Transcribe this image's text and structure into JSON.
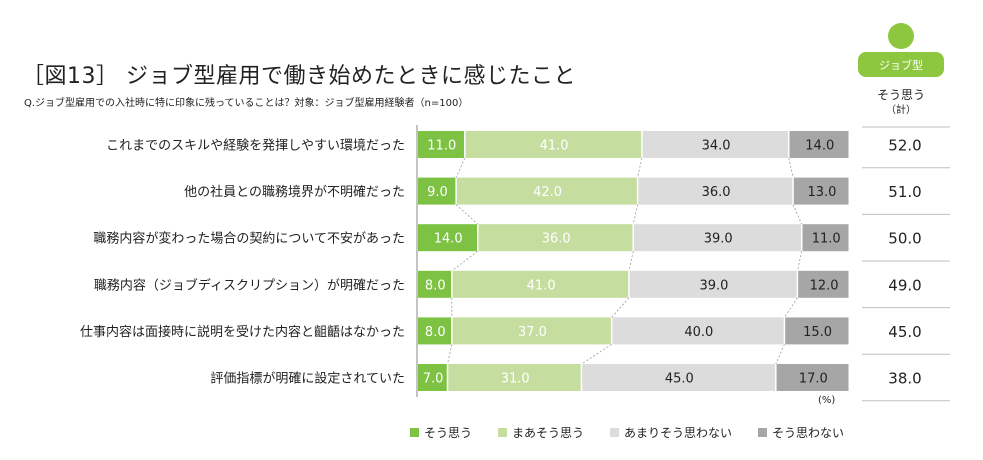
{
  "title": "［図13］ ジョブ型雇用で働き始めたときに感じたこと",
  "subtitle": "Q.ジョブ型雇用での入社時に特に印象に残っていることは？対象：ジョブ型雇用経験者（n=100）",
  "avatar": {
    "label": "ジョブ型",
    "color": "#8dc63f"
  },
  "summary": {
    "header1": "そう思う",
    "header2": "（計）"
  },
  "unit": "(%)",
  "colors": {
    "s1": "#7dc242",
    "s2": "#c5dea0",
    "s3": "#dcdcdc",
    "s4": "#a6a6a6"
  },
  "chart_data": {
    "type": "bar",
    "orientation": "horizontal",
    "stacked": "100%",
    "categories": [
      "これまでのスキルや経験を発揮しやすい環境だった",
      "他の社員との職務境界が不明確だった",
      "職務内容が変わった場合の契約について不安があった",
      "職務内容（ジョブディスクリプション）が明確だった",
      "仕事内容は面接時に説明を受けた内容と齟齬はなかった",
      "評価指標が明確に設定されていた"
    ],
    "series": [
      {
        "name": "そう思う",
        "values": [
          11.0,
          9.0,
          14.0,
          8.0,
          8.0,
          7.0
        ]
      },
      {
        "name": "まあそう思う",
        "values": [
          41.0,
          42.0,
          36.0,
          41.0,
          37.0,
          31.0
        ]
      },
      {
        "name": "あまりそう思わない",
        "values": [
          34.0,
          36.0,
          39.0,
          39.0,
          40.0,
          45.0
        ]
      },
      {
        "name": "そう思わない",
        "values": [
          14.0,
          13.0,
          11.0,
          12.0,
          15.0,
          17.0
        ]
      }
    ],
    "totals": [
      "52.0",
      "51.0",
      "50.0",
      "49.0",
      "45.0",
      "38.0"
    ],
    "legend": "bottom",
    "grid": false
  }
}
